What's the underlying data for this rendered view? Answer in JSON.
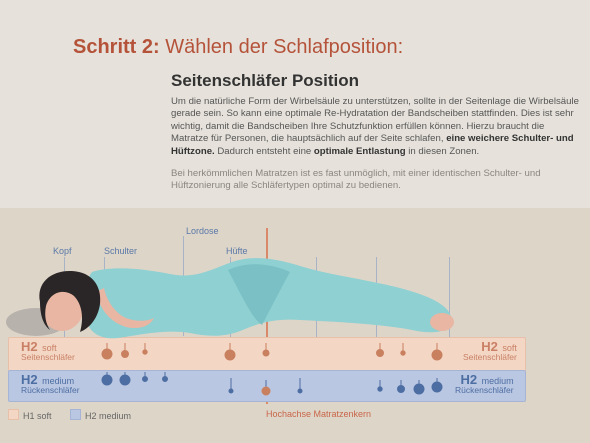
{
  "header": {
    "step_bold": "Schritt 2:",
    "step_rest": " Wählen der Schlafposition:",
    "subtitle": "Seitenschläfer Position"
  },
  "paragraph1": {
    "part1": "Um die natürliche Form der Wirbelsäule zu unterstützen, sollte in der Seitenlage die Wirbelsäule gerade sein. So kann eine optimale Re-Hydratation der Bandscheiben stattfinden. Dies ist sehr wichtig, damit die Bandscheiben Ihre Schutzfunktion erfüllen können. Hierzu braucht die Matratze für Personen, die hauptsächlich auf der Seite schlafen, ",
    "bold1": "eine weichere Schulter- und Hüftzone.",
    "part2": " Dadurch entsteht eine ",
    "bold2": "optimale Entlastung",
    "part3": " in diesen Zonen."
  },
  "paragraph2": "Bei herkömmlichen Matratzen ist es fast unmöglich, mit einer identischen Schulter- und Hüftzonierung alle Schläfertypen optimal zu bedienen.",
  "zones": {
    "kopf": "Kopf",
    "schulter": "Schulter",
    "lordose": "Lordose",
    "huefte": "Hüfte"
  },
  "mattress": {
    "h2": "H2",
    "soft": "soft",
    "medium": "medium",
    "side_sleeper": "Seitenschläfer",
    "back_sleeper": "Rückenschläfer"
  },
  "legend": {
    "h1_soft": "H1 soft",
    "h2_medium": "H2 medium",
    "core": "Hochachse Matratzenkern"
  },
  "colors": {
    "accent": "#b5533a",
    "pink_layer": "#f3d6c4",
    "blue_layer": "#bac7e2",
    "body_teal": "#8fd0d2",
    "hair": "#2a2526",
    "skin": "#e8b6a2"
  }
}
